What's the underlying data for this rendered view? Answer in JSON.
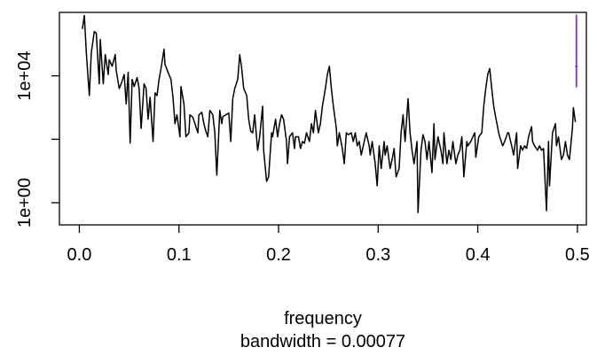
{
  "chart_data": {
    "type": "line",
    "xlabel": "frequency",
    "subtitle": "bandwidth = 0.00077",
    "log_y": true,
    "xlim": [
      -0.02,
      0.509
    ],
    "ylim": [
      0.2,
      1000000
    ],
    "xticks": [
      {
        "value": 0,
        "label": "0.0"
      },
      0.1,
      0.2,
      0.3,
      0.4,
      0.5
    ],
    "yticks": [
      {
        "value": 1,
        "label": "1e+00"
      },
      {
        "value": 100,
        "label": null
      },
      {
        "value": 10000,
        "label": "1e+04"
      }
    ],
    "color": "#000000",
    "x": [
      0.003,
      0.005,
      0.007,
      0.01,
      0.012,
      0.015,
      0.017,
      0.02,
      0.021,
      0.024,
      0.026,
      0.029,
      0.03,
      0.033,
      0.036,
      0.037,
      0.04,
      0.042,
      0.045,
      0.047,
      0.049,
      0.051,
      0.053,
      0.055,
      0.058,
      0.06,
      0.062,
      0.065,
      0.067,
      0.069,
      0.071,
      0.074,
      0.076,
      0.078,
      0.08,
      0.082,
      0.085,
      0.086,
      0.089,
      0.092,
      0.094,
      0.096,
      0.098,
      0.101,
      0.102,
      0.105,
      0.107,
      0.11,
      0.111,
      0.114,
      0.116,
      0.119,
      0.12,
      0.123,
      0.125,
      0.127,
      0.129,
      0.131,
      0.134,
      0.136,
      0.138,
      0.141,
      0.143,
      0.144,
      0.147,
      0.15,
      0.152,
      0.154,
      0.156,
      0.159,
      0.161,
      0.163,
      0.165,
      0.168,
      0.17,
      0.172,
      0.174,
      0.176,
      0.179,
      0.181,
      0.184,
      0.185,
      0.188,
      0.19,
      0.193,
      0.194,
      0.197,
      0.199,
      0.201,
      0.203,
      0.205,
      0.208,
      0.209,
      0.211,
      0.214,
      0.216,
      0.217,
      0.22,
      0.222,
      0.224,
      0.226,
      0.228,
      0.231,
      0.233,
      0.235,
      0.237,
      0.24,
      0.242,
      0.244,
      0.247,
      0.249,
      0.251,
      0.253,
      0.255,
      0.258,
      0.259,
      0.261,
      0.264,
      0.266,
      0.268,
      0.27,
      0.273,
      0.275,
      0.277,
      0.279,
      0.281,
      0.283,
      0.286,
      0.288,
      0.291,
      0.292,
      0.294,
      0.297,
      0.299,
      0.301,
      0.303,
      0.306,
      0.307,
      0.309,
      0.312,
      0.314,
      0.316,
      0.318,
      0.321,
      0.323,
      0.325,
      0.327,
      0.33,
      0.332,
      0.334,
      0.336,
      0.339,
      0.34,
      0.343,
      0.345,
      0.347,
      0.349,
      0.351,
      0.354,
      0.356,
      0.357,
      0.36,
      0.363,
      0.365,
      0.366,
      0.369,
      0.371,
      0.373,
      0.375,
      0.378,
      0.38,
      0.382,
      0.384,
      0.386,
      0.389,
      0.39,
      0.393,
      0.395,
      0.397,
      0.398,
      0.401,
      0.404,
      0.406,
      0.408,
      0.41,
      0.412,
      0.414,
      0.416,
      0.418,
      0.421,
      0.422,
      0.425,
      0.427,
      0.43,
      0.431,
      0.434,
      0.436,
      0.439,
      0.44,
      0.443,
      0.445,
      0.447,
      0.449,
      0.451,
      0.454,
      0.455,
      0.457,
      0.46,
      0.462,
      0.464,
      0.466,
      0.469,
      0.471,
      0.472,
      0.475,
      0.478,
      0.479,
      0.481,
      0.484,
      0.486,
      0.488,
      0.49,
      0.492,
      0.495,
      0.496,
      0.498
    ],
    "values": [
      300000,
      800000,
      53000,
      2400,
      53000,
      250000,
      220000,
      5600,
      140000,
      5600,
      47000,
      11000,
      32000,
      20000,
      47000,
      15000,
      4000,
      5600,
      11000,
      1300,
      13000,
      75,
      7700,
      4600,
      8800,
      4000,
      220,
      5600,
      4000,
      430,
      2100,
      85,
      2900,
      2400,
      7700,
      17000,
      69000,
      23000,
      13000,
      7700,
      2100,
      310,
      590,
      120,
      4600,
      1300,
      120,
      160,
      590,
      490,
      310,
      160,
      590,
      710,
      310,
      180,
      120,
      810,
      590,
      160,
      7.4,
      810,
      310,
      510,
      590,
      670,
      85,
      1900,
      4000,
      7700,
      47000,
      17000,
      4000,
      2400,
      430,
      180,
      160,
      590,
      45,
      120,
      1100,
      45,
      4.7,
      6.5,
      160,
      120,
      430,
      120,
      310,
      590,
      430,
      85,
      17,
      120,
      160,
      51,
      120,
      120,
      51,
      85,
      75,
      160,
      85,
      310,
      160,
      810,
      160,
      310,
      1100,
      4000,
      11000,
      20000,
      4000,
      1100,
      220,
      62,
      160,
      51,
      17,
      160,
      140,
      160,
      85,
      160,
      62,
      85,
      32,
      85,
      160,
      62,
      32,
      85,
      17,
      3.4,
      62,
      12,
      85,
      32,
      62,
      12,
      23,
      51,
      6.5,
      12,
      160,
      590,
      85,
      1900,
      160,
      45,
      17,
      85,
      0.49,
      45,
      140,
      85,
      23,
      85,
      8.9,
      310,
      23,
      120,
      45,
      17,
      160,
      17,
      45,
      23,
      85,
      17,
      32,
      45,
      120,
      6.5,
      85,
      62,
      85,
      120,
      160,
      27,
      120,
      160,
      1100,
      4000,
      11000,
      17000,
      4000,
      1100,
      490,
      160,
      120,
      62,
      85,
      160,
      160,
      62,
      32,
      160,
      12,
      62,
      45,
      62,
      51,
      120,
      250,
      85,
      62,
      45,
      62,
      45,
      51,
      0.56,
      85,
      3.4,
      160,
      310,
      62,
      120,
      23,
      32,
      85,
      32,
      23,
      220,
      980,
      350
    ],
    "ci_bar": {
      "x": 0.499,
      "lower": 4300,
      "center": 20000,
      "upper": 850000,
      "color": "#7f2fef"
    }
  }
}
